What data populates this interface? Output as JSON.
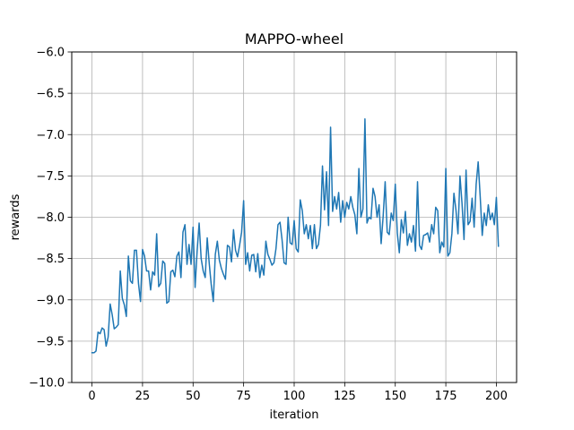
{
  "chart_data": {
    "type": "line",
    "title": "MAPPO-wheel",
    "xlabel": "iteration",
    "ylabel": "rewards",
    "xlim": [
      -10,
      210
    ],
    "ylim": [
      -10.0,
      -6.0
    ],
    "xticks": [
      0,
      25,
      50,
      75,
      100,
      125,
      150,
      175,
      200
    ],
    "yticks": [
      -10.0,
      -9.5,
      -9.0,
      -8.5,
      -8.0,
      -7.5,
      -7.0,
      -6.5,
      -6.0
    ],
    "xtick_labels": [
      "0",
      "25",
      "50",
      "75",
      "100",
      "125",
      "150",
      "175",
      "200"
    ],
    "ytick_labels": [
      "−10.0",
      "−9.5",
      "−9.0",
      "−8.5",
      "−8.0",
      "−7.5",
      "−7.0",
      "−6.5",
      "−6.0"
    ],
    "grid": true,
    "legend": "none",
    "series": [
      {
        "color": "#1f77b4",
        "values": [
          -9.64,
          -9.64,
          -9.62,
          -9.39,
          -9.41,
          -9.34,
          -9.36,
          -9.56,
          -9.45,
          -9.05,
          -9.18,
          -9.35,
          -9.33,
          -9.3,
          -8.65,
          -8.98,
          -9.06,
          -9.2,
          -8.47,
          -8.77,
          -8.8,
          -8.4,
          -8.4,
          -8.8,
          -9.02,
          -8.39,
          -8.47,
          -8.65,
          -8.65,
          -8.88,
          -8.66,
          -8.7,
          -8.2,
          -8.84,
          -8.8,
          -8.53,
          -8.56,
          -9.04,
          -9.02,
          -8.66,
          -8.64,
          -8.72,
          -8.47,
          -8.42,
          -8.73,
          -8.18,
          -8.09,
          -8.57,
          -8.33,
          -8.57,
          -8.12,
          -8.85,
          -8.41,
          -8.07,
          -8.5,
          -8.65,
          -8.73,
          -8.25,
          -8.56,
          -8.82,
          -9.02,
          -8.45,
          -8.29,
          -8.52,
          -8.62,
          -8.69,
          -8.75,
          -8.34,
          -8.36,
          -8.54,
          -8.15,
          -8.4,
          -8.48,
          -8.34,
          -8.18,
          -7.8,
          -8.57,
          -8.43,
          -8.65,
          -8.46,
          -8.45,
          -8.66,
          -8.44,
          -8.73,
          -8.58,
          -8.7,
          -8.29,
          -8.45,
          -8.51,
          -8.58,
          -8.55,
          -8.38,
          -8.09,
          -8.06,
          -8.27,
          -8.55,
          -8.57,
          -8.0,
          -8.31,
          -8.33,
          -8.04,
          -8.38,
          -8.42,
          -7.79,
          -7.92,
          -8.2,
          -8.09,
          -8.26,
          -8.1,
          -8.38,
          -8.09,
          -8.38,
          -8.33,
          -8.1,
          -7.38,
          -7.91,
          -7.45,
          -8.1,
          -6.91,
          -7.93,
          -7.75,
          -7.9,
          -7.7,
          -8.06,
          -7.8,
          -8.0,
          -7.82,
          -7.9,
          -7.75,
          -7.88,
          -7.97,
          -8.2,
          -7.41,
          -8.0,
          -7.9,
          -6.81,
          -8.07,
          -8.0,
          -8.02,
          -7.65,
          -7.75,
          -8.0,
          -7.85,
          -8.32,
          -7.99,
          -7.57,
          -8.18,
          -8.21,
          -7.95,
          -8.04,
          -7.6,
          -8.19,
          -8.43,
          -8.03,
          -8.19,
          -7.93,
          -8.34,
          -8.2,
          -8.3,
          -8.1,
          -8.41,
          -7.57,
          -8.34,
          -8.39,
          -8.22,
          -8.21,
          -8.19,
          -8.3,
          -8.09,
          -8.2,
          -7.88,
          -7.92,
          -8.43,
          -8.3,
          -8.36,
          -7.41,
          -8.47,
          -8.43,
          -8.2,
          -7.71,
          -7.91,
          -8.2,
          -7.5,
          -7.83,
          -8.27,
          -7.43,
          -8.09,
          -8.05,
          -7.77,
          -8.12,
          -7.6,
          -7.33,
          -7.75,
          -8.22,
          -7.95,
          -8.1,
          -7.85,
          -8.03,
          -7.95,
          -8.09,
          -7.76,
          -8.35
        ]
      }
    ]
  }
}
